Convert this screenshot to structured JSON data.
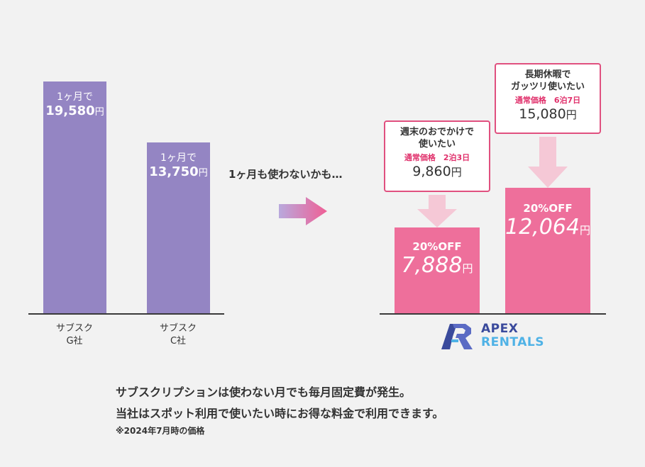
{
  "chart_data": [
    {
      "type": "bar",
      "categories": [
        "サブスク G社",
        "サブスク C社"
      ],
      "category_lines": [
        [
          "サブスク",
          "G社"
        ],
        [
          "サブスク",
          "C社"
        ]
      ],
      "values": [
        19580,
        13750
      ],
      "bar_labels": [
        {
          "period": "1ヶ月で",
          "price": "19,580",
          "yen": "円"
        },
        {
          "period": "1ヶ月で",
          "price": "13,750",
          "yen": "円"
        }
      ],
      "color": "#9485c3"
    },
    {
      "type": "bar",
      "categories": [
        "週末のおでかけで使いたい",
        "長期休暇でガッツリ使いたい"
      ],
      "values": [
        7888,
        12064
      ],
      "normal_values": [
        9860,
        15080
      ],
      "bar_labels": [
        {
          "discount": "20%OFF",
          "price": "7,888",
          "yen": "円"
        },
        {
          "discount": "20%OFF",
          "price": "12,064",
          "yen": "円"
        }
      ],
      "callouts": [
        {
          "title_lines": [
            "週末のおでかけで",
            "使いたい"
          ],
          "normal_label": "通常価格　2泊3日",
          "price": "9,860",
          "yen": "円"
        },
        {
          "title_lines": [
            "長期休暇で",
            "ガッツリ使いたい"
          ],
          "normal_label": "通常価格　6泊7日",
          "price": "15,080",
          "yen": "円"
        }
      ],
      "color": "#ee6f9b"
    }
  ],
  "transition_text": "1ヶ月も使わないかも…",
  "logo": {
    "line1": "APEX",
    "line2": "RENTALS",
    "mark_color": "#3a4a9c",
    "accent_color": "#4fb2e6"
  },
  "footer": {
    "line1": "サブスクリプションは使わない月でも毎月固定費が発生。",
    "line2": "当社はスポット利用で使いたい時にお得な料金で利用できます。",
    "note": "※2024年7月時の価格"
  },
  "colors": {
    "purple": "#9485c3",
    "pink": "#ee6f9b",
    "callout_border": "#e0507f",
    "arrow_light": "#f5c8d6"
  }
}
